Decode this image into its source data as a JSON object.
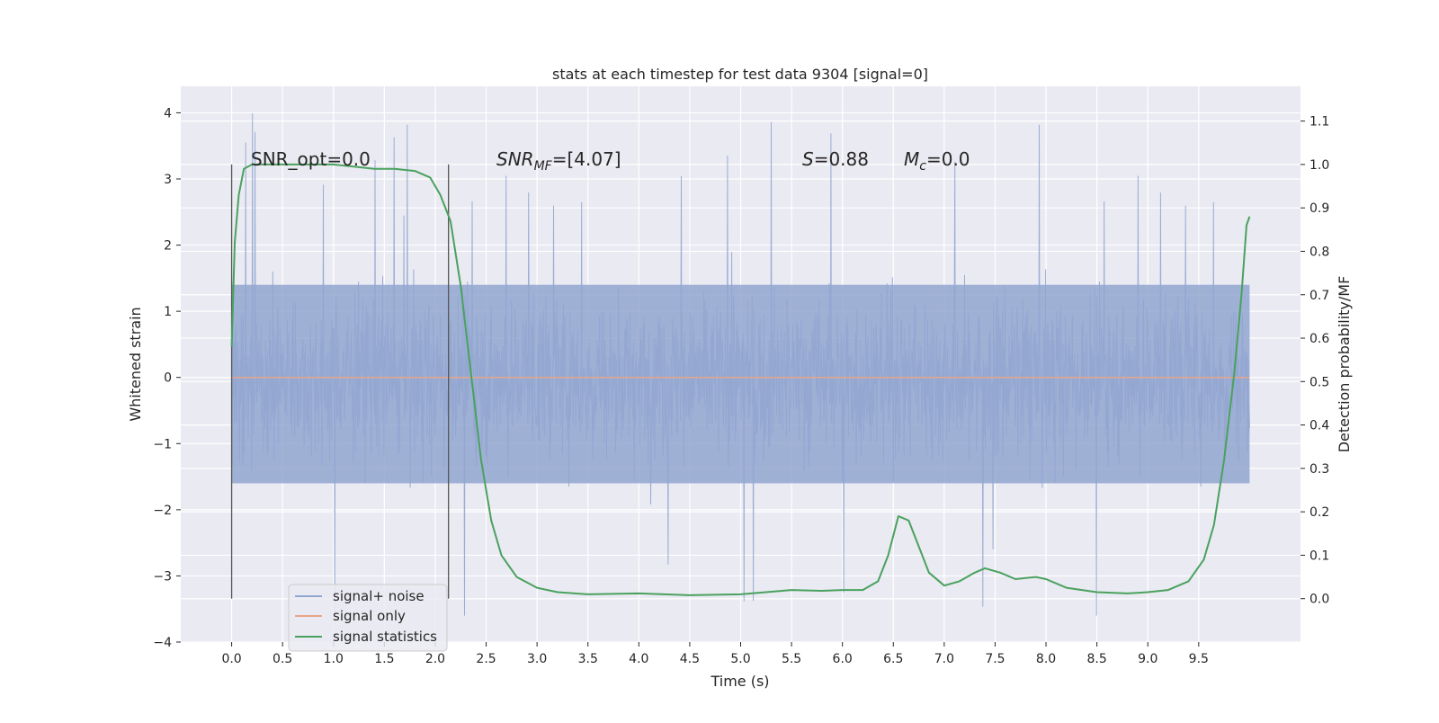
{
  "chart_data": {
    "type": "line",
    "title": "stats at each timestep for test data 9304 [signal=0]",
    "xlabel": "Time (s)",
    "ylabel": "Whitened strain",
    "ylabel_right": "Detection probability/MF",
    "xlim": [
      -0.5,
      10.5
    ],
    "ylim": [
      -4,
      4.4
    ],
    "ylim_right": [
      -0.1,
      1.18
    ],
    "x_ticks": [
      "0.0",
      "0.5",
      "1.0",
      "1.5",
      "2.0",
      "2.5",
      "3.0",
      "3.5",
      "4.0",
      "4.5",
      "5.0",
      "5.5",
      "6.0",
      "6.5",
      "7.0",
      "7.5",
      "8.0",
      "8.5",
      "9.0",
      "9.5"
    ],
    "y_ticks": [
      "−4",
      "−3",
      "−2",
      "−1",
      "0",
      "1",
      "2",
      "3",
      "4"
    ],
    "y_ticks_right": [
      "0.0",
      "0.1",
      "0.2",
      "0.3",
      "0.4",
      "0.5",
      "0.6",
      "0.7",
      "0.8",
      "0.9",
      "1.0",
      "1.1"
    ],
    "grid": true,
    "legend_position": "lower-left",
    "annotations": {
      "snr_opt": "SNR_opt=0.0",
      "snr_mf_base": "SNR",
      "snr_mf_sub": "MF",
      "snr_mf_value": "=[4.07]",
      "s_label": "S",
      "s_value": "=0.88",
      "mc_base": "M",
      "mc_sub": "c",
      "mc_value": "=0.0"
    },
    "vertical_markers": [
      0.0,
      2.13
    ],
    "series": [
      {
        "name": "signal+ noise",
        "color": "#92a6d0",
        "axis": "left",
        "description_range": {
          "x_start": 0.0,
          "x_end": 10.0,
          "band": [
            -1.6,
            1.4
          ],
          "max_spike": 4.05,
          "min_spike": -3.6
        }
      },
      {
        "name": "signal only",
        "color": "#e8a68a",
        "axis": "left",
        "x": [
          0.0,
          10.0
        ],
        "y": [
          0.0,
          0.0
        ]
      },
      {
        "name": "signal statistics",
        "color": "#4aa15e",
        "axis": "right",
        "x": [
          0.0,
          0.03,
          0.07,
          0.12,
          0.2,
          0.3,
          0.5,
          0.8,
          1.0,
          1.2,
          1.4,
          1.6,
          1.8,
          1.95,
          2.05,
          2.15,
          2.25,
          2.35,
          2.45,
          2.55,
          2.65,
          2.8,
          3.0,
          3.2,
          3.5,
          4.0,
          4.5,
          5.0,
          5.5,
          5.8,
          6.0,
          6.2,
          6.35,
          6.45,
          6.55,
          6.65,
          6.75,
          6.85,
          7.0,
          7.15,
          7.3,
          7.4,
          7.55,
          7.7,
          7.9,
          8.0,
          8.2,
          8.5,
          8.8,
          9.0,
          9.2,
          9.4,
          9.55,
          9.65,
          9.75,
          9.85,
          9.92,
          9.97,
          10.0
        ],
        "y": [
          0.58,
          0.82,
          0.93,
          0.99,
          1.0,
          1.0,
          1.0,
          1.0,
          1.0,
          0.995,
          0.99,
          0.99,
          0.985,
          0.97,
          0.93,
          0.87,
          0.72,
          0.52,
          0.32,
          0.18,
          0.1,
          0.05,
          0.025,
          0.015,
          0.01,
          0.012,
          0.008,
          0.01,
          0.02,
          0.018,
          0.02,
          0.02,
          0.04,
          0.1,
          0.19,
          0.18,
          0.12,
          0.06,
          0.03,
          0.04,
          0.06,
          0.07,
          0.06,
          0.045,
          0.05,
          0.045,
          0.025,
          0.015,
          0.012,
          0.015,
          0.02,
          0.04,
          0.09,
          0.17,
          0.32,
          0.52,
          0.7,
          0.86,
          0.88
        ]
      }
    ]
  }
}
